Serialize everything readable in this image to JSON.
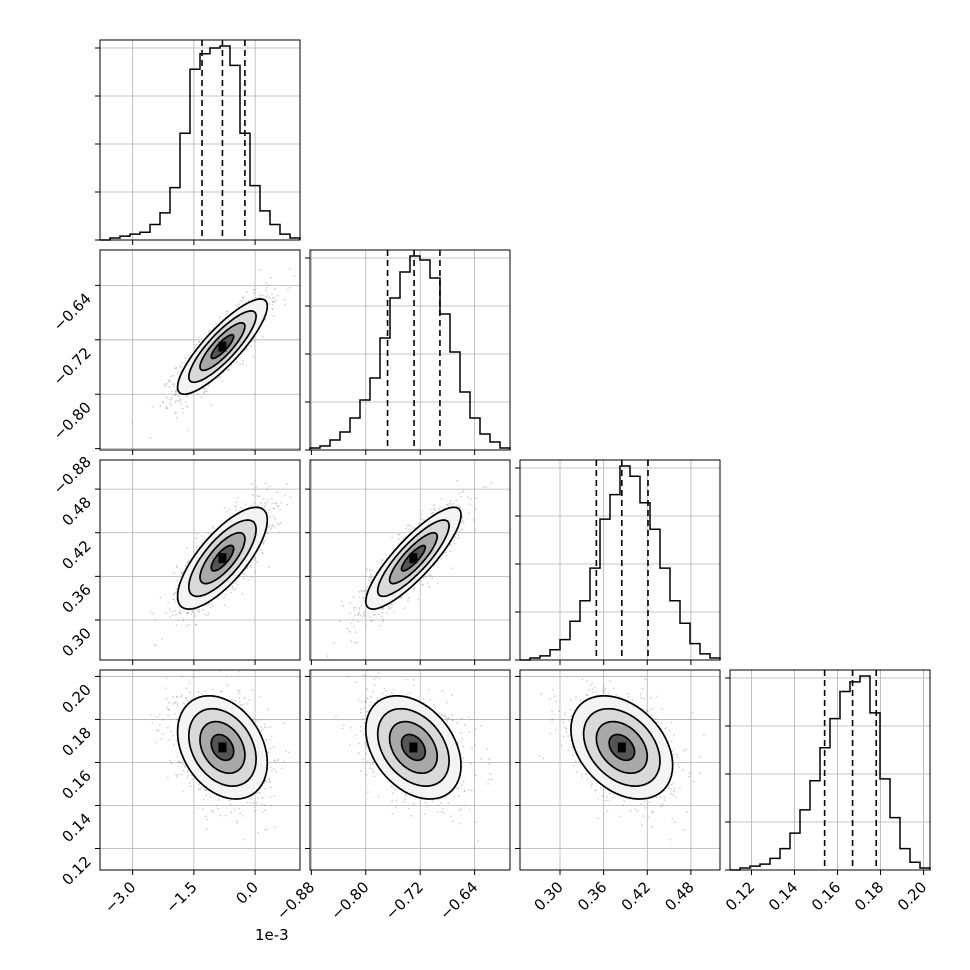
{
  "chart_data": {
    "type": "corner",
    "parameters": [
      {
        "index": 0,
        "offset_text": "1e-3",
        "ticks": [
          -3.0,
          -1.5,
          0.0
        ],
        "tick_labels": [
          "−3.0",
          "−1.5",
          "0.0"
        ],
        "range": [
          -3.8,
          1.1
        ],
        "mean": -0.8,
        "std": 0.55,
        "quantiles": [
          -1.3,
          -0.8,
          -0.25
        ],
        "hist": {
          "edges": [
            -3.8,
            -3.555,
            -3.31,
            -3.065,
            -2.82,
            -2.575,
            -2.33,
            -2.085,
            -1.84,
            -1.595,
            -1.35,
            -1.105,
            -0.86,
            -0.615,
            -0.37,
            -0.125,
            0.12,
            0.365,
            0.61,
            0.855,
            1.1
          ],
          "counts": [
            0,
            1,
            2,
            3,
            4,
            8,
            14,
            27,
            55,
            88,
            96,
            99,
            100,
            90,
            55,
            28,
            15,
            8,
            3,
            1
          ]
        }
      },
      {
        "index": 1,
        "offset_text": "",
        "ticks": [
          -0.88,
          -0.8,
          -0.72,
          -0.64
        ],
        "tick_labels": [
          "−0.88",
          "−0.80",
          "−0.72",
          "−0.64"
        ],
        "range": [
          -0.882,
          -0.588
        ],
        "mean": -0.73,
        "std": 0.035,
        "quantiles": [
          -0.768,
          -0.729,
          -0.691
        ],
        "hist": {
          "edges": [
            -0.882,
            -0.8673,
            -0.8526,
            -0.8379,
            -0.8232,
            -0.8085,
            -0.7938,
            -0.7791,
            -0.7644,
            -0.7497,
            -0.735,
            -0.7203,
            -0.7056,
            -0.6909,
            -0.6762,
            -0.6615,
            -0.6468,
            -0.6321,
            -0.6174,
            -0.6027,
            -0.588
          ],
          "counts": [
            1,
            2,
            5,
            9,
            16,
            25,
            36,
            56,
            76,
            89,
            97,
            95,
            86,
            68,
            49,
            29,
            16,
            8,
            4,
            1
          ]
        }
      },
      {
        "index": 2,
        "offset_text": "",
        "ticks": [
          0.3,
          0.36,
          0.42,
          0.48
        ],
        "tick_labels": [
          "0.30",
          "0.36",
          "0.42",
          "0.48"
        ],
        "range": [
          0.245,
          0.52
        ],
        "mean": 0.385,
        "std": 0.035,
        "quantiles": [
          0.35,
          0.385,
          0.421
        ],
        "hist": {
          "edges": [
            0.245,
            0.25875,
            0.2725,
            0.28625,
            0.3,
            0.31375,
            0.3275,
            0.34125,
            0.355,
            0.36875,
            0.3825,
            0.39625,
            0.41,
            0.42375,
            0.4375,
            0.45125,
            0.465,
            0.47875,
            0.4925,
            0.50625,
            0.52
          ],
          "counts": [
            0,
            1,
            2,
            5,
            10,
            19,
            29,
            45,
            69,
            81,
            95,
            90,
            77,
            64,
            45,
            29,
            18,
            8,
            3,
            1
          ]
        }
      },
      {
        "index": 3,
        "offset_text": "",
        "ticks": [
          0.12,
          0.14,
          0.16,
          0.18,
          0.2
        ],
        "tick_labels": [
          "0.12",
          "0.14",
          "0.16",
          "0.18",
          "0.20"
        ],
        "range": [
          0.11,
          0.203
        ],
        "mean": 0.167,
        "std": 0.012,
        "quantiles": [
          0.154,
          0.167,
          0.178
        ],
        "hist": {
          "edges": [
            0.11,
            0.11465,
            0.1193,
            0.12395,
            0.1286,
            0.13325,
            0.1379,
            0.14255,
            0.1472,
            0.15185,
            0.1565,
            0.16115,
            0.1658,
            0.17045,
            0.1751,
            0.17975,
            0.1844,
            0.18905,
            0.1937,
            0.19835,
            0.203
          ],
          "counts": [
            0,
            1,
            2,
            3,
            6,
            11,
            19,
            31,
            46,
            63,
            78,
            92,
            97,
            100,
            81,
            47,
            27,
            11,
            4,
            1
          ]
        }
      }
    ],
    "correlations": [
      [
        1,
        0.85,
        0.75,
        -0.3
      ],
      [
        0.85,
        1,
        0.85,
        -0.35
      ],
      [
        0.75,
        0.85,
        1,
        -0.35
      ],
      [
        -0.3,
        -0.35,
        -0.35,
        1
      ]
    ],
    "contour_levels_sigma": [
      0.5,
      1.0,
      1.5,
      2.0
    ],
    "grid": true,
    "panels": [
      {
        "id": "hist-0"
      },
      {
        "id": "scatter-1-0"
      },
      {
        "id": "hist-1"
      },
      {
        "id": "scatter-2-0"
      },
      {
        "id": "scatter-2-1"
      },
      {
        "id": "hist-2"
      },
      {
        "id": "scatter-3-0"
      },
      {
        "id": "scatter-3-1"
      },
      {
        "id": "scatter-3-2"
      },
      {
        "id": "hist-3"
      }
    ]
  }
}
